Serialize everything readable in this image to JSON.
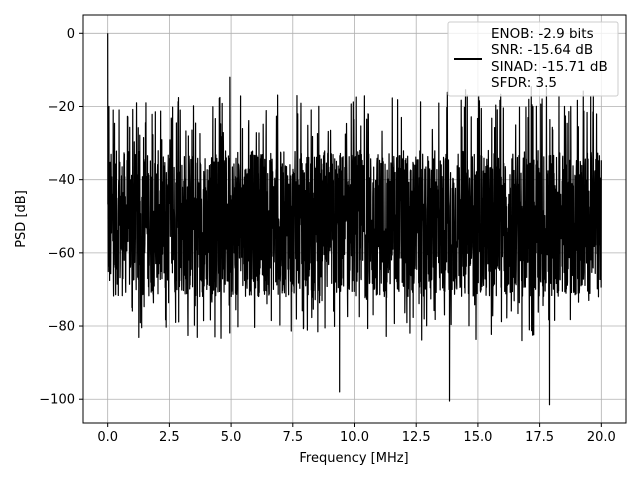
{
  "chart_data": {
    "type": "line",
    "title": "",
    "xlabel": "Frequency [MHz]",
    "ylabel": "PSD [dB]",
    "xlim": [
      -1.0,
      21.0
    ],
    "ylim": [
      -106.5,
      5.0
    ],
    "grid": true,
    "line_color": "#000000",
    "x_ticks": [
      0.0,
      2.5,
      5.0,
      7.5,
      10.0,
      12.5,
      15.0,
      17.5,
      20.0
    ],
    "x_tick_labels": [
      "0.0",
      "2.5",
      "5.0",
      "7.5",
      "10.0",
      "12.5",
      "15.0",
      "17.5",
      "20.0"
    ],
    "y_ticks": [
      0,
      -20,
      -40,
      -60,
      -80,
      -100
    ],
    "y_tick_labels": [
      "0",
      "−20",
      "−40",
      "−60",
      "−80",
      "−100"
    ],
    "legend": {
      "placement": "upper right",
      "entries": [
        "ENOB: -2.9 bits",
        "SNR: -15.64 dB",
        "SINAD: -15.71 dB",
        "SFDR: 3.5"
      ]
    },
    "series": [
      {
        "x_range": [
          0.0,
          20.0
        ],
        "noise_floor_mean": -52,
        "noise_range": [
          -101,
          -12
        ],
        "peaks": [
          {
            "x": 0.0,
            "y": 0.0
          },
          {
            "x": 0.05,
            "y": -20
          },
          {
            "x": 1.55,
            "y": -19
          },
          {
            "x": 4.95,
            "y": -12
          },
          {
            "x": 13.85,
            "y": -100.5
          },
          {
            "x": 17.9,
            "y": -101.5
          },
          {
            "x": 9.4,
            "y": -98
          }
        ]
      }
    ]
  }
}
